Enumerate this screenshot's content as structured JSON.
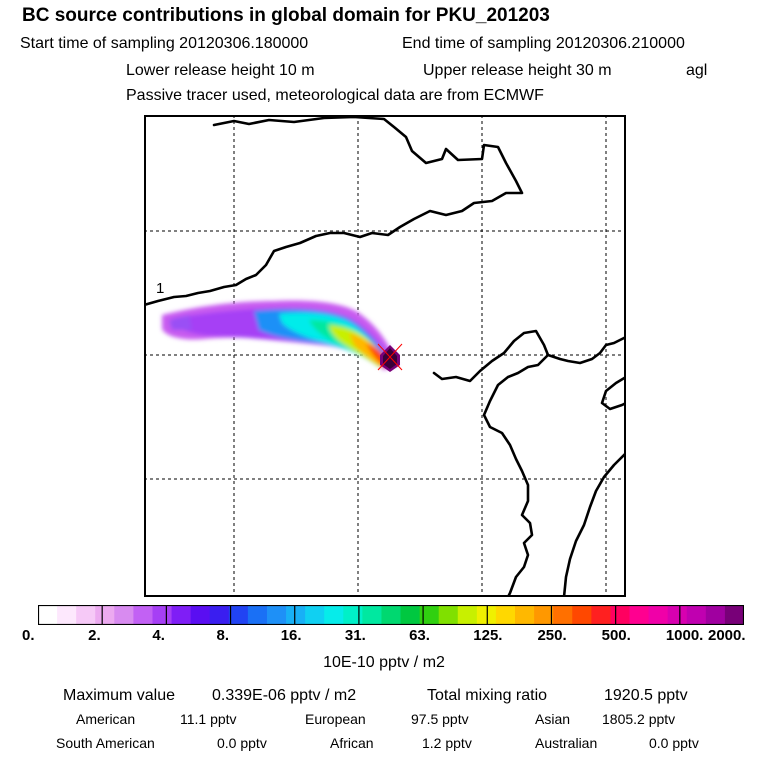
{
  "header": {
    "title": "BC  source contributions in global domain for PKU_201203",
    "start_label": "Start time of sampling 20120306.180000",
    "end_label": "End time of sampling 20120306.210000",
    "lower_label": "Lower release height   10 m",
    "upper_label": "Upper release height   30 m",
    "agl": "agl",
    "tracer_note": "Passive tracer used, meteorological data are from ECMWF"
  },
  "map": {
    "contour_label": "1"
  },
  "colorbar": {
    "ticks": [
      "0.",
      "2.",
      "4.",
      "8.",
      "16.",
      "31.",
      "63.",
      "125.",
      "250.",
      "500.",
      "1000.",
      "2000."
    ],
    "unit": "10E-10 pptv / m2",
    "colors": [
      "#ffffff",
      "#fde8fd",
      "#f6c9f7",
      "#ecaaf0",
      "#d88bf0",
      "#c261f4",
      "#a63ff5",
      "#7f1ef6",
      "#5a0ef2",
      "#3a1ef0",
      "#2143f3",
      "#1a70f5",
      "#1e90f7",
      "#18b0f6",
      "#10d0f2",
      "#06ecea",
      "#00f0c8",
      "#00e8a0",
      "#00d870",
      "#00c840",
      "#30d010",
      "#80e000",
      "#c8f000",
      "#f0f000",
      "#ffd800",
      "#ffb800",
      "#ff9800",
      "#ff7000",
      "#ff4800",
      "#ff2020",
      "#ff0060",
      "#ff0090",
      "#f000a8",
      "#d800b0",
      "#c000b0",
      "#a000a0",
      "#780078"
    ]
  },
  "stats": {
    "max_label": "Maximum value",
    "max_value": "0.339E-06 pptv / m2",
    "total_label": "Total mixing ratio",
    "total_value": "1920.5 pptv",
    "regions": [
      {
        "name": "American",
        "value": "11.1 pptv"
      },
      {
        "name": "European",
        "value": "97.5 pptv"
      },
      {
        "name": "Asian",
        "value": "1805.2 pptv"
      },
      {
        "name": "South American",
        "value": "0.0 pptv"
      },
      {
        "name": "African",
        "value": "1.2 pptv"
      },
      {
        "name": "Australian",
        "value": "0.0 pptv"
      }
    ]
  }
}
